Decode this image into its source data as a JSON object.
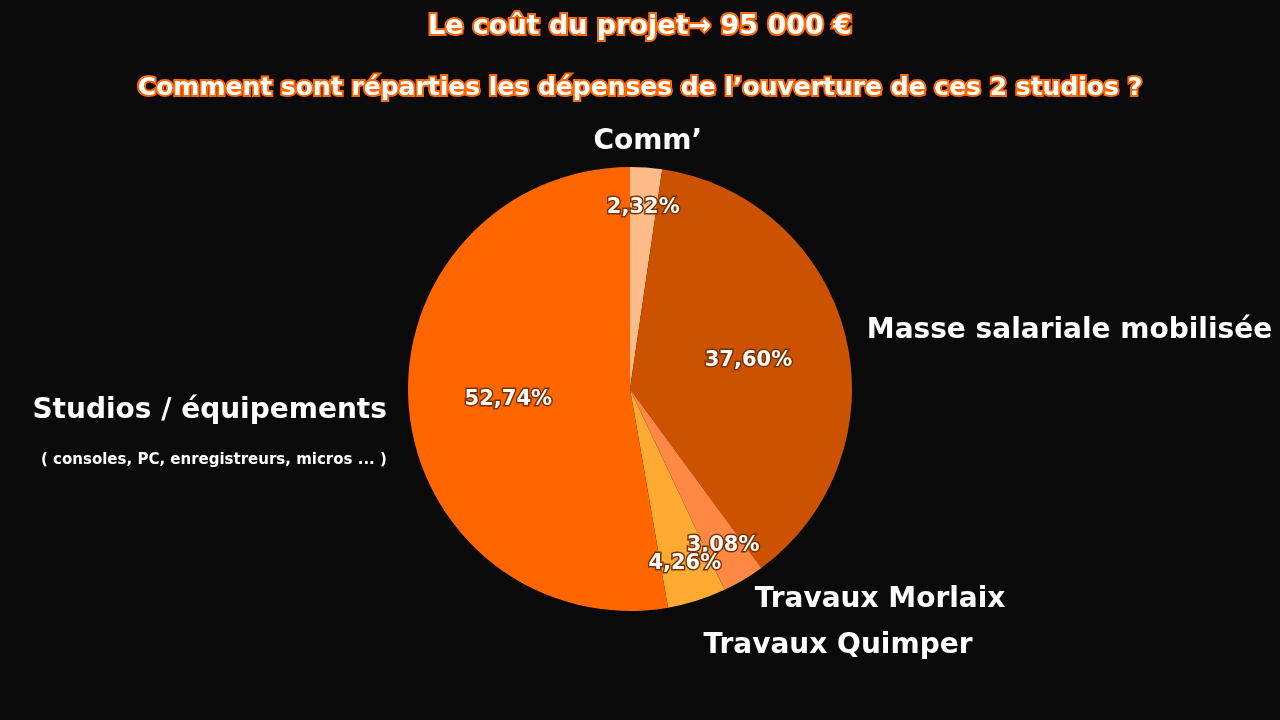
{
  "chart_data": {
    "type": "pie",
    "title": "Le coût du projet→ 95 000 €",
    "subtitle": "Comment sont réparties les dépenses de l’ouverture de ces 2 studios ?",
    "categories": [
      "Comm’",
      "Masse salariale mobilisée",
      "Travaux Morlaix",
      "Travaux Quimper",
      "Studios / équipements"
    ],
    "values": [
      2.32,
      37.6,
      3.08,
      4.26,
      52.74
    ],
    "colors": [
      "#ffbb88",
      "#cc5200",
      "#ff8844",
      "#ffaa33",
      "#ff6600"
    ],
    "value_labels": [
      "2,32%",
      "37,60%",
      "3,08%",
      "4,26%",
      "52,74%"
    ],
    "annotations": [
      "( consoles, PC, enregistreurs, micros ... )"
    ]
  }
}
